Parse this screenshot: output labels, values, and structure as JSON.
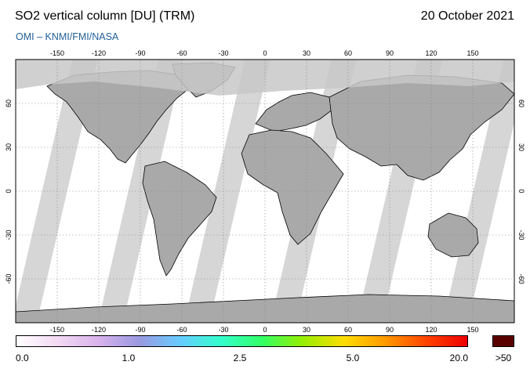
{
  "header": {
    "title": "SO2 vertical column [DU] (TRM)",
    "date": "20 October 2021",
    "credit": "OMI  –  KNMI/FMI/NASA"
  },
  "map": {
    "lon_ticks": [
      "-150",
      "-120",
      "-90",
      "-60",
      "-30",
      "0",
      "30",
      "60",
      "90",
      "120",
      "150"
    ],
    "lat_ticks": [
      "60",
      "30",
      "0",
      "-30",
      "-60"
    ],
    "colors": {
      "no_data": "#c8c8c8",
      "land": "#a9a9a9",
      "ocean": "#ffffff",
      "coast": "#000000",
      "grid": "#888888"
    }
  },
  "colorbar": {
    "labels": [
      "0.0",
      "1.0",
      "2.5",
      "5.0",
      "20.0"
    ],
    "overflow_label": ">50",
    "overflow_color": "#5a0000",
    "gradient_stops": [
      "#ffffff",
      "#f3d9f3",
      "#d9b3ec",
      "#9999e0",
      "#66ccff",
      "#33ffcc",
      "#33ff66",
      "#99ee00",
      "#ffdd00",
      "#ff9900",
      "#ff4400",
      "#ee0000"
    ]
  }
}
